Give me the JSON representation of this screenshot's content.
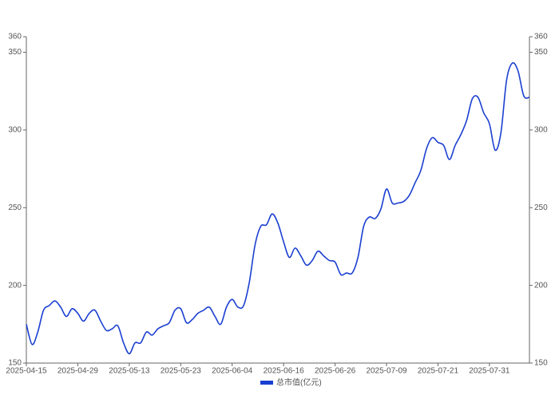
{
  "chart_data": {
    "type": "line",
    "categories": [
      "2025-04-15",
      null,
      null,
      null,
      null,
      null,
      null,
      null,
      null,
      "2025-04-29",
      null,
      null,
      null,
      null,
      null,
      null,
      null,
      null,
      "2025-05-13",
      null,
      null,
      null,
      null,
      null,
      null,
      null,
      null,
      "2025-05-23",
      null,
      null,
      null,
      null,
      null,
      null,
      null,
      null,
      "2025-06-04",
      null,
      null,
      null,
      null,
      null,
      null,
      null,
      null,
      "2025-06-16",
      null,
      null,
      null,
      null,
      null,
      null,
      null,
      null,
      "2025-06-26",
      null,
      null,
      null,
      null,
      null,
      null,
      null,
      null,
      "2025-07-09",
      null,
      null,
      null,
      null,
      null,
      null,
      null,
      null,
      "2025-07-21",
      null,
      null,
      null,
      null,
      null,
      null,
      null,
      null,
      "2025-07-31",
      null,
      null,
      null,
      null,
      null,
      null,
      null
    ],
    "series": [
      {
        "name": "总市值(亿元)",
        "color": "#1a3fd0",
        "values": [
          175,
          162,
          170,
          184,
          187,
          190,
          186,
          180,
          185,
          182,
          177,
          182,
          184,
          177,
          171,
          172,
          174,
          163,
          156,
          163,
          163,
          170,
          168,
          172,
          174,
          176,
          184,
          185,
          176,
          178,
          182,
          184,
          186,
          180,
          175,
          186,
          191,
          186,
          187,
          202,
          226,
          238,
          239,
          246,
          240,
          228,
          218,
          224,
          219,
          213,
          216,
          222,
          219,
          216,
          215,
          207,
          208,
          208,
          218,
          238,
          244,
          243,
          249,
          262,
          253,
          253,
          254,
          258,
          266,
          274,
          288,
          295,
          292,
          290,
          281,
          290,
          297,
          306,
          320,
          321,
          311,
          304,
          287,
          298,
          332,
          343,
          338,
          322,
          321
        ]
      }
    ],
    "ylim": [
      150,
      360
    ],
    "yticks": [
      150,
      200,
      250,
      300,
      350,
      360
    ],
    "y2lim": [
      150,
      360
    ],
    "y2ticks": [
      150,
      200,
      250,
      300,
      350,
      360
    ],
    "legend": "bottom"
  }
}
